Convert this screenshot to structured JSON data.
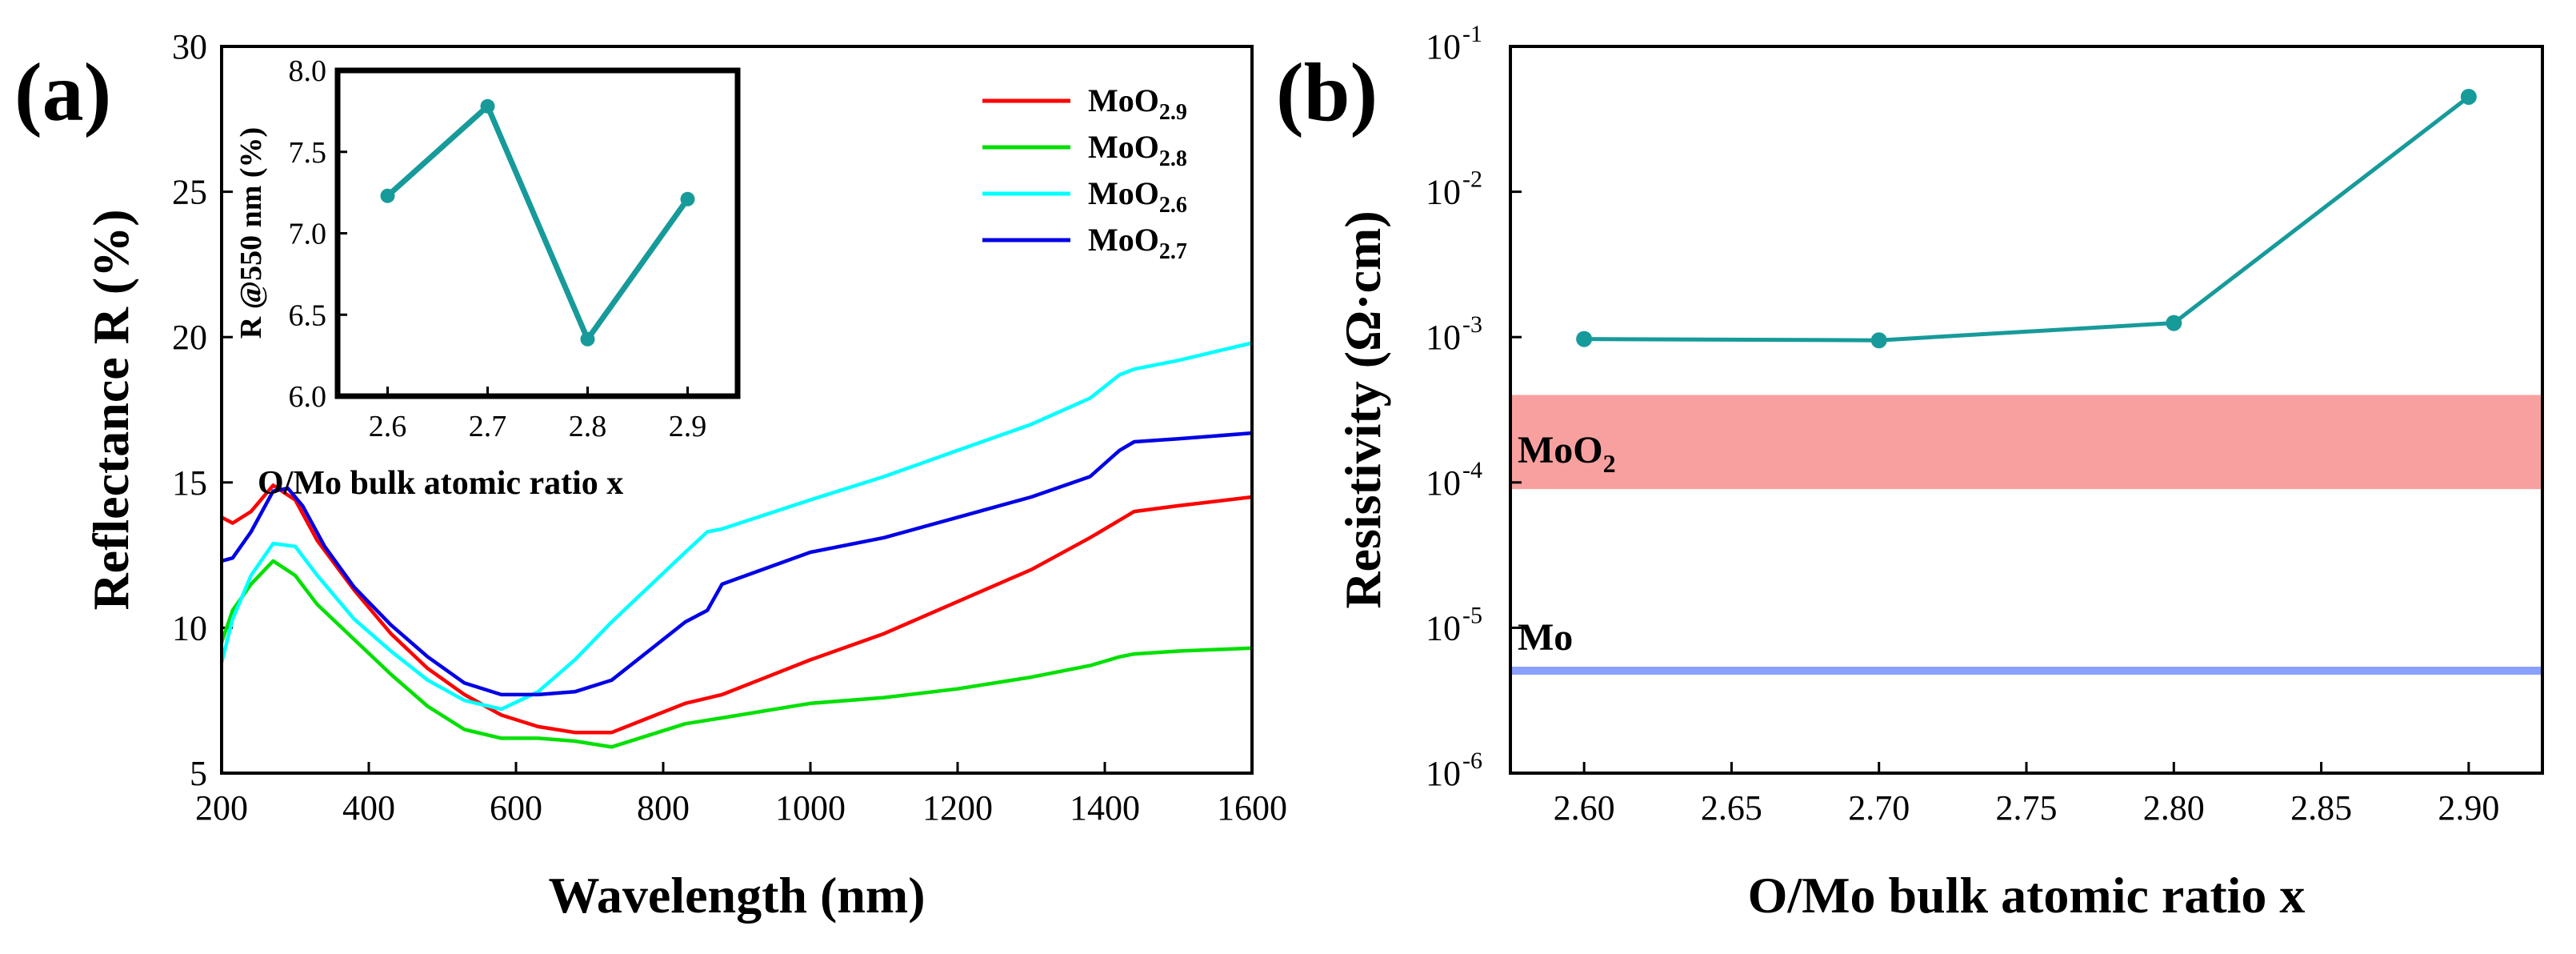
{
  "panels": [
    {
      "id": "a",
      "label": "(a)",
      "xlabel": "Wavelength (nm)",
      "ylabel": "Reflectance R (%)",
      "annotation": "O/Mo bulk atomic ratio x",
      "inset_ylabel": "R @550 nm (%)"
    },
    {
      "id": "b",
      "label": "(b)",
      "xlabel": "O/Mo bulk atomic ratio x",
      "ylabel": "Resistivity (Ω·cm)",
      "bands": [
        {
          "label_base": "MoO",
          "label_sub": "2"
        },
        {
          "label_base": "Mo",
          "label_sub": ""
        }
      ]
    }
  ],
  "chart_data": [
    {
      "type": "line",
      "panel": "a",
      "title": "",
      "xlabel": "Wavelength (nm)",
      "ylabel": "Reflectance R (%)",
      "xlim": [
        200,
        1600
      ],
      "ylim": [
        5,
        30
      ],
      "xticks": [
        200,
        400,
        600,
        800,
        1000,
        1200,
        1400,
        1600
      ],
      "yticks": [
        5,
        10,
        15,
        20,
        25,
        30
      ],
      "legend_position": "top-right",
      "series": [
        {
          "name": "MoO2.9",
          "base": "MoO",
          "sub": "2.9",
          "color": "#ff0000",
          "x": [
            200,
            215,
            240,
            270,
            300,
            330,
            380,
            430,
            480,
            530,
            580,
            630,
            680,
            730,
            780,
            830,
            880,
            930,
            1000,
            1100,
            1200,
            1300,
            1380,
            1420,
            1440,
            1500,
            1600
          ],
          "y": [
            13.8,
            13.6,
            14.0,
            14.9,
            14.4,
            13.0,
            11.3,
            9.8,
            8.6,
            7.7,
            7.0,
            6.6,
            6.4,
            6.4,
            6.9,
            7.4,
            7.7,
            8.2,
            8.9,
            9.8,
            10.9,
            12.0,
            13.1,
            13.7,
            14.0,
            14.2,
            14.5
          ]
        },
        {
          "name": "MoO2.8",
          "base": "MoO",
          "sub": "2.8",
          "color": "#00e000",
          "x": [
            200,
            215,
            240,
            270,
            300,
            330,
            380,
            430,
            480,
            530,
            580,
            630,
            680,
            730,
            780,
            830,
            880,
            1000,
            1100,
            1200,
            1300,
            1380,
            1420,
            1440,
            1500,
            1600
          ],
          "y": [
            9.5,
            10.6,
            11.5,
            12.3,
            11.8,
            10.8,
            9.6,
            8.4,
            7.3,
            6.5,
            6.2,
            6.2,
            6.1,
            5.9,
            6.3,
            6.7,
            6.9,
            7.4,
            7.6,
            7.9,
            8.3,
            8.7,
            9.0,
            9.1,
            9.2,
            9.3
          ]
        },
        {
          "name": "MoO2.6",
          "base": "MoO",
          "sub": "2.6",
          "color": "#00ffff",
          "x": [
            200,
            215,
            240,
            270,
            300,
            330,
            380,
            430,
            480,
            530,
            580,
            630,
            680,
            730,
            780,
            830,
            860,
            880,
            1000,
            1100,
            1200,
            1300,
            1380,
            1420,
            1440,
            1500,
            1600
          ],
          "y": [
            8.8,
            10.3,
            11.8,
            12.9,
            12.8,
            11.8,
            10.3,
            9.2,
            8.2,
            7.5,
            7.2,
            7.8,
            8.9,
            10.2,
            11.4,
            12.6,
            13.3,
            13.4,
            14.4,
            15.2,
            16.1,
            17.0,
            17.9,
            18.7,
            18.9,
            19.2,
            19.8
          ]
        },
        {
          "name": "MoO2.7",
          "base": "MoO",
          "sub": "2.7",
          "color": "#0000e6",
          "x": [
            200,
            215,
            240,
            270,
            290,
            310,
            340,
            380,
            430,
            480,
            530,
            580,
            630,
            680,
            730,
            780,
            830,
            860,
            880,
            1000,
            1100,
            1200,
            1300,
            1380,
            1420,
            1440,
            1500,
            1600
          ],
          "y": [
            12.3,
            12.4,
            13.3,
            14.7,
            14.8,
            14.2,
            12.8,
            11.4,
            10.1,
            9.0,
            8.1,
            7.7,
            7.7,
            7.8,
            8.2,
            9.2,
            10.2,
            10.6,
            11.5,
            12.6,
            13.1,
            13.8,
            14.5,
            15.2,
            16.1,
            16.4,
            16.5,
            16.7
          ]
        }
      ]
    },
    {
      "type": "line",
      "panel": "a-inset",
      "title": "",
      "xlabel": "",
      "ylabel": "R @550 nm (%)",
      "xlim": [
        2.55,
        2.95
      ],
      "ylim": [
        6.0,
        8.0
      ],
      "xticks": [
        2.6,
        2.7,
        2.8,
        2.9
      ],
      "yticks": [
        6.0,
        6.5,
        7.0,
        7.5,
        8.0
      ],
      "series": [
        {
          "name": "R@550",
          "color": "#179a9a",
          "x": [
            2.6,
            2.7,
            2.8,
            2.9
          ],
          "y": [
            7.23,
            7.78,
            6.35,
            7.21
          ]
        }
      ]
    },
    {
      "type": "line",
      "panel": "b",
      "title": "",
      "xlabel": "O/Mo bulk atomic ratio x",
      "ylabel": "Resistivity (Ω·cm)",
      "yscale": "log",
      "xlim": [
        2.575,
        2.925
      ],
      "ylim": [
        1e-06,
        0.1
      ],
      "xticks": [
        "2.60",
        "2.65",
        "2.70",
        "2.75",
        "2.80",
        "2.85",
        "2.90"
      ],
      "yticks": [
        -6,
        -5,
        -4,
        -3,
        -2,
        -1
      ],
      "series": [
        {
          "name": "Resistivity",
          "color": "#179a9a",
          "x": [
            2.6,
            2.7,
            2.8,
            2.9
          ],
          "y": [
            0.00097,
            0.00095,
            0.00125,
            0.045
          ]
        }
      ],
      "bands": [
        {
          "name": "MoO2",
          "ymin": 9e-05,
          "ymax": 0.0004,
          "color": "#f8a0a0"
        },
        {
          "name": "Mo",
          "ymin": 4.8e-06,
          "ymax": 5.4e-06,
          "color": "#8aa0ff"
        }
      ]
    }
  ]
}
